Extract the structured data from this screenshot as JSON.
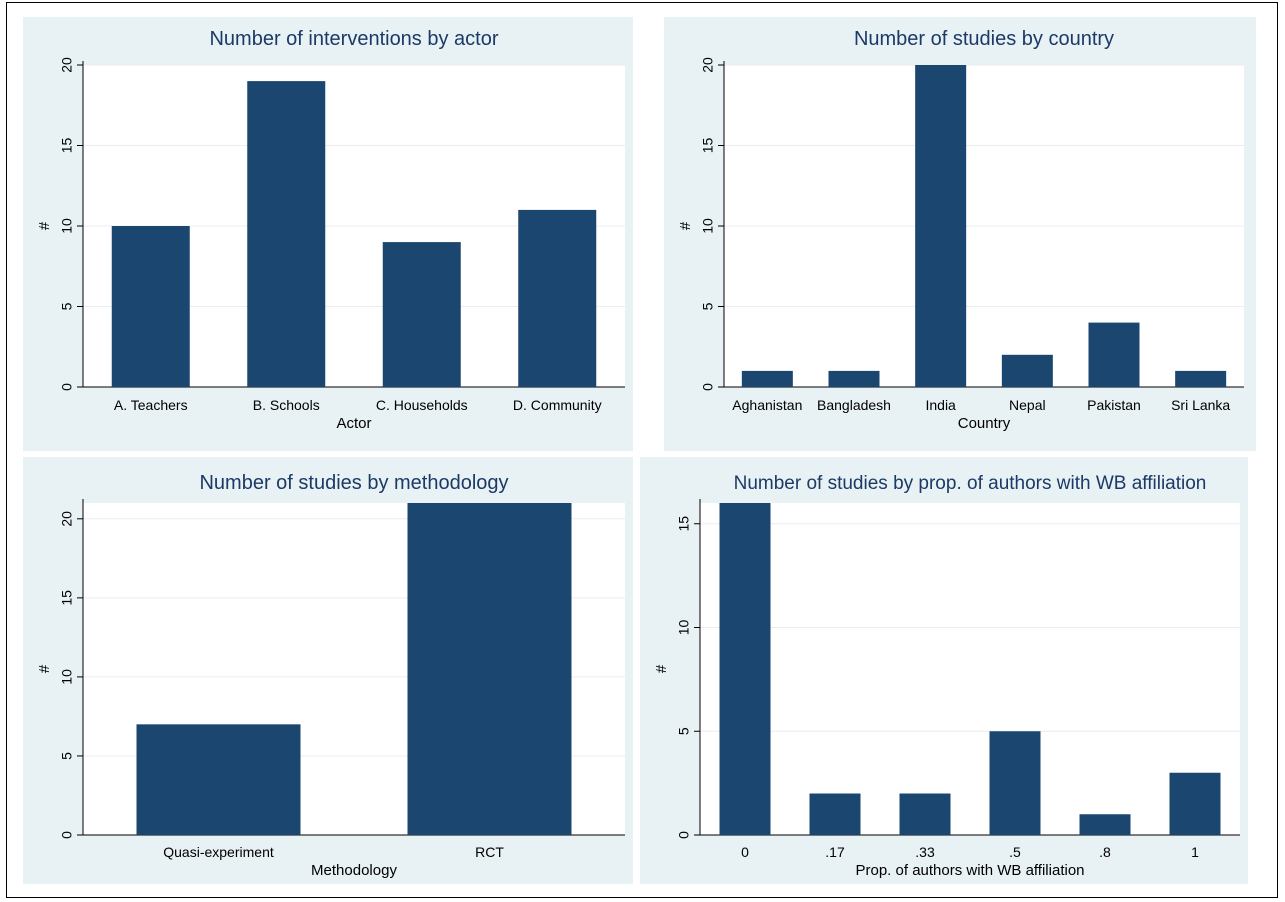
{
  "colors": {
    "bar": "#1b466f",
    "panel_bg": "#e8f1f3",
    "plot_bg": "#ffffff",
    "grid": "#e8eef0",
    "title": "#1b3a68",
    "text": "#000000"
  },
  "chart_data": [
    {
      "type": "bar",
      "title": "Number of interventions by actor",
      "xlabel": "Actor",
      "ylabel": "#",
      "categories": [
        "A. Teachers",
        "B. Schools",
        "C. Households",
        "D. Community"
      ],
      "values": [
        10,
        19,
        9,
        11
      ],
      "ylim": [
        0,
        20
      ],
      "yticks": [
        0,
        5,
        10,
        15,
        20
      ],
      "grid": true
    },
    {
      "type": "bar",
      "title": "Number of studies by country",
      "xlabel": "Country",
      "ylabel": "#",
      "categories": [
        "Aghanistan",
        "Bangladesh",
        "India",
        "Nepal",
        "Pakistan",
        "Sri Lanka"
      ],
      "values": [
        1,
        1,
        20,
        2,
        4,
        1
      ],
      "ylim": [
        0,
        20
      ],
      "yticks": [
        0,
        5,
        10,
        15,
        20
      ],
      "grid": true
    },
    {
      "type": "bar",
      "title": "Number of studies by methodology",
      "xlabel": "Methodology",
      "ylabel": "#",
      "categories": [
        "Quasi-experiment",
        "RCT"
      ],
      "values": [
        7,
        21
      ],
      "ylim": [
        0,
        21
      ],
      "yticks": [
        0,
        5,
        10,
        15,
        20
      ],
      "grid": true
    },
    {
      "type": "bar",
      "title": "Number of studies by prop. of authors with WB affiliation",
      "xlabel": "Prop. of authors with WB affiliation",
      "ylabel": "#",
      "categories": [
        "0",
        ".17",
        ".33",
        ".5",
        ".8",
        "1"
      ],
      "values": [
        16,
        2,
        2,
        5,
        1,
        3
      ],
      "ylim": [
        0,
        16
      ],
      "yticks": [
        0,
        5,
        10,
        15
      ],
      "grid": true
    }
  ]
}
